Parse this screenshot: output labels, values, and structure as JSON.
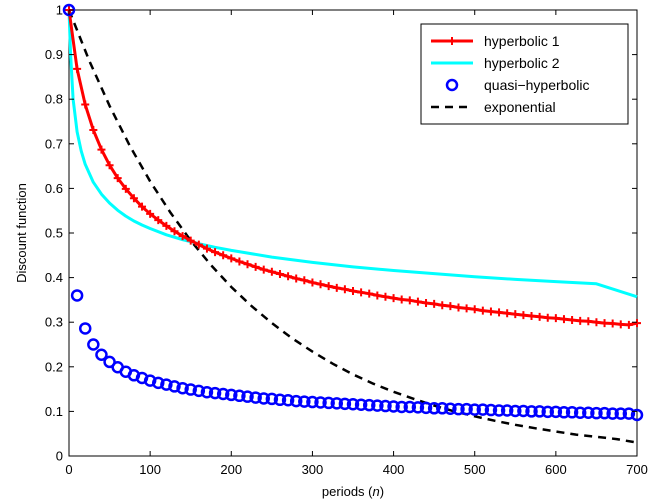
{
  "chart_data": {
    "type": "line",
    "xlabel_prefix": "periods (",
    "xlabel_var": "n",
    "xlabel_suffix": ")",
    "ylabel": "Discount function",
    "xlim": [
      0,
      700
    ],
    "ylim": [
      0,
      1
    ],
    "xticks": [
      0,
      100,
      200,
      300,
      400,
      500,
      600,
      700
    ],
    "yticks": [
      0,
      0.1,
      0.2,
      0.3,
      0.4,
      0.5,
      0.6,
      0.7,
      0.8,
      0.9,
      1
    ],
    "xtick_labels": [
      "0",
      "100",
      "200",
      "300",
      "400",
      "500",
      "600",
      "700"
    ],
    "ytick_labels": [
      "0",
      "0.1",
      "0.2",
      "0.3",
      "0.4",
      "0.5",
      "0.6",
      "0.7",
      "0.8",
      "0.9",
      "1"
    ],
    "grid": false,
    "legend_position": "top-right",
    "series": [
      {
        "name": "hyperbolic 1",
        "style": "line-plus",
        "color": "#ff0000",
        "x": [
          0,
          10,
          20,
          30,
          40,
          50,
          60,
          70,
          80,
          90,
          100,
          110,
          120,
          130,
          140,
          150,
          160,
          170,
          180,
          190,
          200,
          210,
          220,
          230,
          240,
          250,
          260,
          270,
          280,
          290,
          300,
          310,
          320,
          330,
          340,
          350,
          360,
          370,
          380,
          390,
          400,
          410,
          420,
          430,
          440,
          450,
          460,
          470,
          480,
          490,
          500,
          510,
          520,
          530,
          540,
          550,
          560,
          570,
          580,
          590,
          600,
          610,
          620,
          630,
          640,
          650,
          660,
          670,
          680,
          690,
          700
        ],
        "y": [
          1.0,
          0.868,
          0.788,
          0.731,
          0.687,
          0.652,
          0.623,
          0.599,
          0.578,
          0.559,
          0.543,
          0.529,
          0.516,
          0.504,
          0.493,
          0.483,
          0.474,
          0.465,
          0.457,
          0.45,
          0.443,
          0.436,
          0.43,
          0.424,
          0.418,
          0.413,
          0.408,
          0.403,
          0.398,
          0.394,
          0.389,
          0.385,
          0.381,
          0.377,
          0.374,
          0.37,
          0.367,
          0.364,
          0.36,
          0.357,
          0.354,
          0.351,
          0.349,
          0.346,
          0.343,
          0.341,
          0.338,
          0.336,
          0.333,
          0.331,
          0.329,
          0.326,
          0.324,
          0.322,
          0.32,
          0.318,
          0.316,
          0.314,
          0.312,
          0.31,
          0.309,
          0.307,
          0.305,
          0.303,
          0.302,
          0.3,
          0.298,
          0.297,
          0.295,
          0.294,
          0.298
        ]
      },
      {
        "name": "hyperbolic 2",
        "style": "line",
        "color": "#00ffff",
        "x": [
          0,
          2,
          5,
          10,
          15,
          20,
          30,
          40,
          50,
          60,
          70,
          80,
          90,
          100,
          120,
          140,
          160,
          180,
          200,
          250,
          300,
          350,
          400,
          450,
          500,
          550,
          600,
          650,
          700
        ],
        "y": [
          1.0,
          0.9,
          0.8,
          0.727,
          0.684,
          0.654,
          0.614,
          0.587,
          0.567,
          0.551,
          0.538,
          0.527,
          0.518,
          0.51,
          0.496,
          0.485,
          0.476,
          0.468,
          0.461,
          0.446,
          0.434,
          0.424,
          0.416,
          0.409,
          0.402,
          0.396,
          0.391,
          0.386,
          0.357
        ]
      },
      {
        "name": "quasi−hyperbolic",
        "style": "markers-circle",
        "color": "#0000ff",
        "x": [
          0,
          10,
          20,
          30,
          40,
          50,
          60,
          70,
          80,
          90,
          100,
          110,
          120,
          130,
          140,
          150,
          160,
          170,
          180,
          190,
          200,
          210,
          220,
          230,
          240,
          250,
          260,
          270,
          280,
          290,
          300,
          310,
          320,
          330,
          340,
          350,
          360,
          370,
          380,
          390,
          400,
          410,
          420,
          430,
          440,
          450,
          460,
          470,
          480,
          490,
          500,
          510,
          520,
          530,
          540,
          550,
          560,
          570,
          580,
          590,
          600,
          610,
          620,
          630,
          640,
          650,
          660,
          670,
          680,
          690,
          700
        ],
        "y": [
          1.0,
          0.36,
          0.286,
          0.25,
          0.227,
          0.211,
          0.199,
          0.189,
          0.181,
          0.175,
          0.169,
          0.164,
          0.16,
          0.156,
          0.152,
          0.149,
          0.146,
          0.143,
          0.141,
          0.139,
          0.137,
          0.135,
          0.133,
          0.131,
          0.129,
          0.128,
          0.126,
          0.125,
          0.123,
          0.122,
          0.121,
          0.12,
          0.119,
          0.118,
          0.117,
          0.116,
          0.115,
          0.114,
          0.113,
          0.112,
          0.111,
          0.11,
          0.11,
          0.109,
          0.108,
          0.107,
          0.107,
          0.106,
          0.105,
          0.105,
          0.104,
          0.104,
          0.103,
          0.102,
          0.102,
          0.101,
          0.101,
          0.1,
          0.1,
          0.099,
          0.099,
          0.098,
          0.098,
          0.097,
          0.097,
          0.096,
          0.096,
          0.095,
          0.095,
          0.095,
          0.092
        ]
      },
      {
        "name": "exponential",
        "style": "dashed",
        "color": "#000000",
        "x": [
          0,
          25,
          50,
          75,
          100,
          125,
          150,
          175,
          200,
          225,
          250,
          275,
          300,
          325,
          350,
          375,
          400,
          425,
          450,
          475,
          500,
          525,
          550,
          575,
          600,
          625,
          650,
          675,
          700
        ],
        "y": [
          1.0,
          0.886,
          0.785,
          0.695,
          0.616,
          0.546,
          0.483,
          0.428,
          0.379,
          0.336,
          0.298,
          0.264,
          0.234,
          0.207,
          0.183,
          0.162,
          0.144,
          0.128,
          0.113,
          0.1,
          0.089,
          0.079,
          0.07,
          0.062,
          0.055,
          0.048,
          0.043,
          0.038,
          0.03
        ]
      }
    ]
  }
}
